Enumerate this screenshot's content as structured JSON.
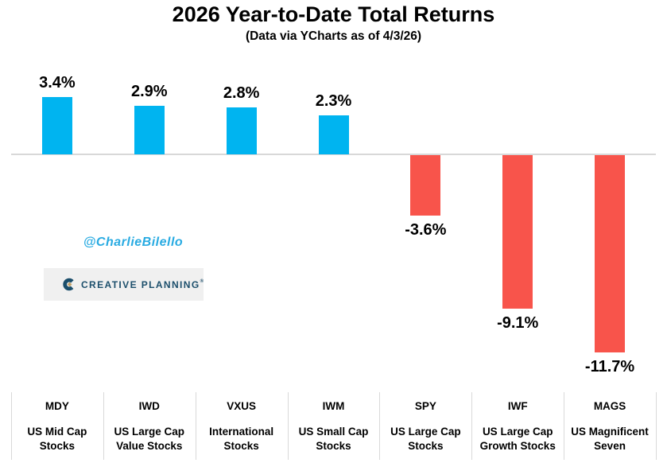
{
  "chart_data": {
    "type": "bar",
    "title": "2026 Year-to-Date Total Returns",
    "subtitle": "(Data via YCharts as of 4/3/26)",
    "categories": [
      "MDY",
      "IWD",
      "VXUS",
      "IWM",
      "SPY",
      "IWF",
      "MAGS"
    ],
    "category_descriptions": [
      "US Mid Cap\nStocks",
      "US Large Cap\nValue Stocks",
      "International\nStocks",
      "US Small Cap\nStocks",
      "US Large Cap\nStocks",
      "US Large Cap\nGrowth Stocks",
      "US Magnificent\nSeven"
    ],
    "values": [
      3.4,
      2.9,
      2.8,
      2.3,
      -3.6,
      -9.1,
      -11.7
    ],
    "value_labels": [
      "3.4%",
      "2.9%",
      "2.8%",
      "2.3%",
      "-3.6%",
      "-9.1%",
      "-11.7%"
    ],
    "unit": "%",
    "positive_color": "#00B4F0",
    "negative_color": "#F8544B",
    "axis_line_color": "#D8D8D8",
    "divider_color": "#D9D9D9",
    "zero_baseline": true,
    "gridlines": false,
    "legend": false
  },
  "watermark": {
    "handle": "@CharlieBilello",
    "color": "#29ABE2"
  },
  "logo": {
    "wordmark": "CREATIVE PLANNING",
    "registered_mark": "®",
    "navy": "#1B4E6B",
    "gold": "#C4A36A",
    "background": "#F0F0F0"
  }
}
